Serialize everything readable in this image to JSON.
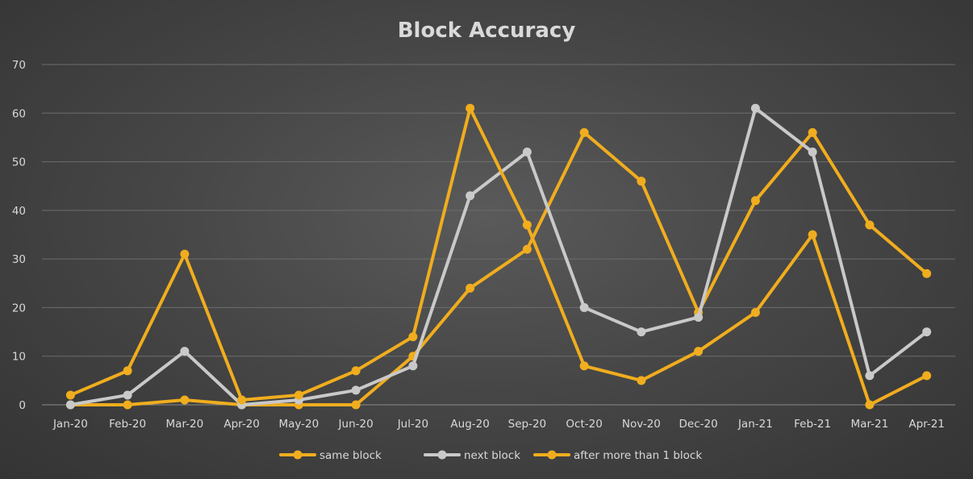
{
  "chart_data": {
    "type": "line",
    "title": "Block Accuracy",
    "xlabel": "",
    "ylabel": "",
    "ylim": [
      0,
      70
    ],
    "yticks": [
      0,
      10,
      20,
      30,
      40,
      50,
      60,
      70
    ],
    "grid": true,
    "legend_position": "bottom",
    "categories": [
      "Jan-20",
      "Feb-20",
      "Mar-20",
      "Apr-20",
      "May-20",
      "Jun-20",
      "Jul-20",
      "Aug-20",
      "Sep-20",
      "Oct-20",
      "Nov-20",
      "Dec-20",
      "Jan-21",
      "Feb-21",
      "Mar-21",
      "Apr-21"
    ],
    "series": [
      {
        "name": "same block",
        "color": "#f0ad1e",
        "values": [
          2,
          7,
          31,
          1,
          2,
          7,
          14,
          61,
          37,
          8,
          5,
          11,
          19,
          35,
          0,
          6
        ]
      },
      {
        "name": "next block",
        "color": "#c9c9c9",
        "values": [
          0,
          2,
          11,
          0,
          1,
          3,
          8,
          43,
          52,
          20,
          15,
          18,
          61,
          52,
          6,
          15
        ]
      },
      {
        "name": "after more than 1 block",
        "color": "#f0ad1e",
        "values": [
          0,
          0,
          1,
          0,
          0,
          0,
          10,
          24,
          32,
          56,
          46,
          19,
          42,
          56,
          37,
          27
        ]
      }
    ]
  }
}
